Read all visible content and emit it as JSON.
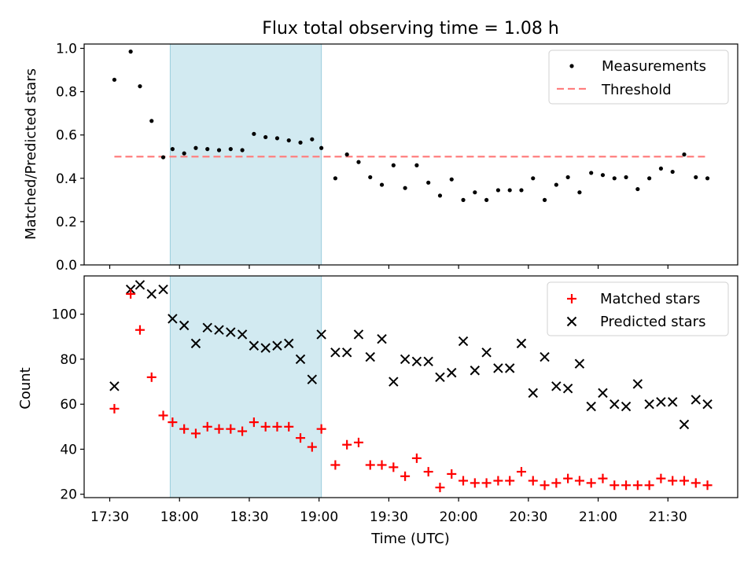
{
  "chart_data": {
    "title": "Flux total observing time = 1.08 h",
    "xlabel": "Time (UTC)",
    "x_ticks": [
      "17:30",
      "18:00",
      "18:30",
      "19:00",
      "19:30",
      "20:00",
      "20:30",
      "21:00",
      "21:30"
    ],
    "x_range": [
      "17:19",
      "22:00"
    ],
    "highlight": {
      "start": "17:56",
      "end": "19:01",
      "color": "#add8e6"
    },
    "colors": {
      "measurements": "#000000",
      "threshold": "#ff7f7f",
      "matched": "#ff0000",
      "predicted": "#000000"
    },
    "panels": [
      {
        "type": "scatter",
        "ylabel": "Matched/Predicted stars",
        "ylim": [
          0,
          1.02
        ],
        "yticks": [
          "0.0",
          "0.2",
          "0.4",
          "0.6",
          "0.8",
          "1.0"
        ],
        "legend_position": "top-right",
        "threshold": {
          "name": "Threshold",
          "y": 0.5,
          "x_start": "17:32",
          "x_end": "21:47"
        },
        "series": [
          {
            "name": "Measurements",
            "x": [
              "17:32",
              "17:39",
              "17:43",
              "17:48",
              "17:53",
              "17:57",
              "18:02",
              "18:07",
              "18:12",
              "18:17",
              "18:22",
              "18:27",
              "18:32",
              "18:37",
              "18:42",
              "18:47",
              "18:52",
              "18:57",
              "19:01",
              "19:07",
              "19:12",
              "19:17",
              "19:22",
              "19:27",
              "19:32",
              "19:37",
              "19:42",
              "19:47",
              "19:52",
              "19:57",
              "20:02",
              "20:07",
              "20:12",
              "20:17",
              "20:22",
              "20:27",
              "20:32",
              "20:37",
              "20:42",
              "20:47",
              "20:52",
              "20:57",
              "21:02",
              "21:07",
              "21:12",
              "21:17",
              "21:22",
              "21:27",
              "21:32",
              "21:37",
              "21:42",
              "21:47"
            ],
            "y": [
              0.855,
              0.985,
              0.825,
              0.665,
              0.497,
              0.535,
              0.515,
              0.54,
              0.535,
              0.53,
              0.535,
              0.53,
              0.605,
              0.59,
              0.585,
              0.575,
              0.565,
              0.58,
              0.54,
              0.4,
              0.51,
              0.475,
              0.405,
              0.37,
              0.46,
              0.355,
              0.46,
              0.38,
              0.32,
              0.395,
              0.3,
              0.335,
              0.3,
              0.345,
              0.345,
              0.345,
              0.4,
              0.3,
              0.37,
              0.405,
              0.335,
              0.425,
              0.415,
              0.4,
              0.405,
              0.35,
              0.4,
              0.445,
              0.43,
              0.51,
              0.405,
              0.4
            ]
          }
        ]
      },
      {
        "type": "scatter",
        "ylabel": "Count",
        "ylim": [
          18.5,
          117
        ],
        "yticks": [
          "20",
          "40",
          "60",
          "80",
          "100"
        ],
        "legend_position": "top-right",
        "series": [
          {
            "name": "Matched stars",
            "marker": "plus",
            "x": [
              "17:32",
              "17:39",
              "17:43",
              "17:48",
              "17:53",
              "17:57",
              "18:02",
              "18:07",
              "18:12",
              "18:17",
              "18:22",
              "18:27",
              "18:32",
              "18:37",
              "18:42",
              "18:47",
              "18:52",
              "18:57",
              "19:01",
              "19:07",
              "19:12",
              "19:17",
              "19:22",
              "19:27",
              "19:32",
              "19:37",
              "19:42",
              "19:47",
              "19:52",
              "19:57",
              "20:02",
              "20:07",
              "20:12",
              "20:17",
              "20:22",
              "20:27",
              "20:32",
              "20:37",
              "20:42",
              "20:47",
              "20:52",
              "20:57",
              "21:02",
              "21:07",
              "21:12",
              "21:17",
              "21:22",
              "21:27",
              "21:32",
              "21:37",
              "21:42",
              "21:47"
            ],
            "y": [
              58,
              109,
              93,
              72,
              55,
              52,
              49,
              47,
              50,
              49,
              49,
              48,
              52,
              50,
              50,
              50,
              45,
              41,
              49,
              33,
              42,
              43,
              33,
              33,
              32,
              28,
              36,
              30,
              23,
              29,
              26,
              25,
              25,
              26,
              26,
              30,
              26,
              24,
              25,
              27,
              26,
              25,
              27,
              24,
              24,
              24,
              24,
              27,
              26,
              26,
              25,
              24
            ]
          },
          {
            "name": "Predicted stars",
            "marker": "x",
            "x": [
              "17:32",
              "17:39",
              "17:43",
              "17:48",
              "17:53",
              "17:57",
              "18:02",
              "18:07",
              "18:12",
              "18:17",
              "18:22",
              "18:27",
              "18:32",
              "18:37",
              "18:42",
              "18:47",
              "18:52",
              "18:57",
              "19:01",
              "19:07",
              "19:12",
              "19:17",
              "19:22",
              "19:27",
              "19:32",
              "19:37",
              "19:42",
              "19:47",
              "19:52",
              "19:57",
              "20:02",
              "20:07",
              "20:12",
              "20:17",
              "20:22",
              "20:27",
              "20:32",
              "20:37",
              "20:42",
              "20:47",
              "20:52",
              "20:57",
              "21:02",
              "21:07",
              "21:12",
              "21:17",
              "21:22",
              "21:27",
              "21:32",
              "21:37",
              "21:42",
              "21:47"
            ],
            "y": [
              68,
              111,
              113,
              109,
              111,
              98,
              95,
              87,
              94,
              93,
              92,
              91,
              86,
              85,
              86,
              87,
              80,
              71,
              91,
              83,
              83,
              91,
              81,
              89,
              70,
              80,
              79,
              79,
              72,
              74,
              88,
              75,
              83,
              76,
              76,
              87,
              65,
              81,
              68,
              67,
              78,
              59,
              65,
              60,
              59,
              69,
              60,
              61,
              61,
              51,
              62,
              60
            ]
          }
        ]
      }
    ]
  }
}
